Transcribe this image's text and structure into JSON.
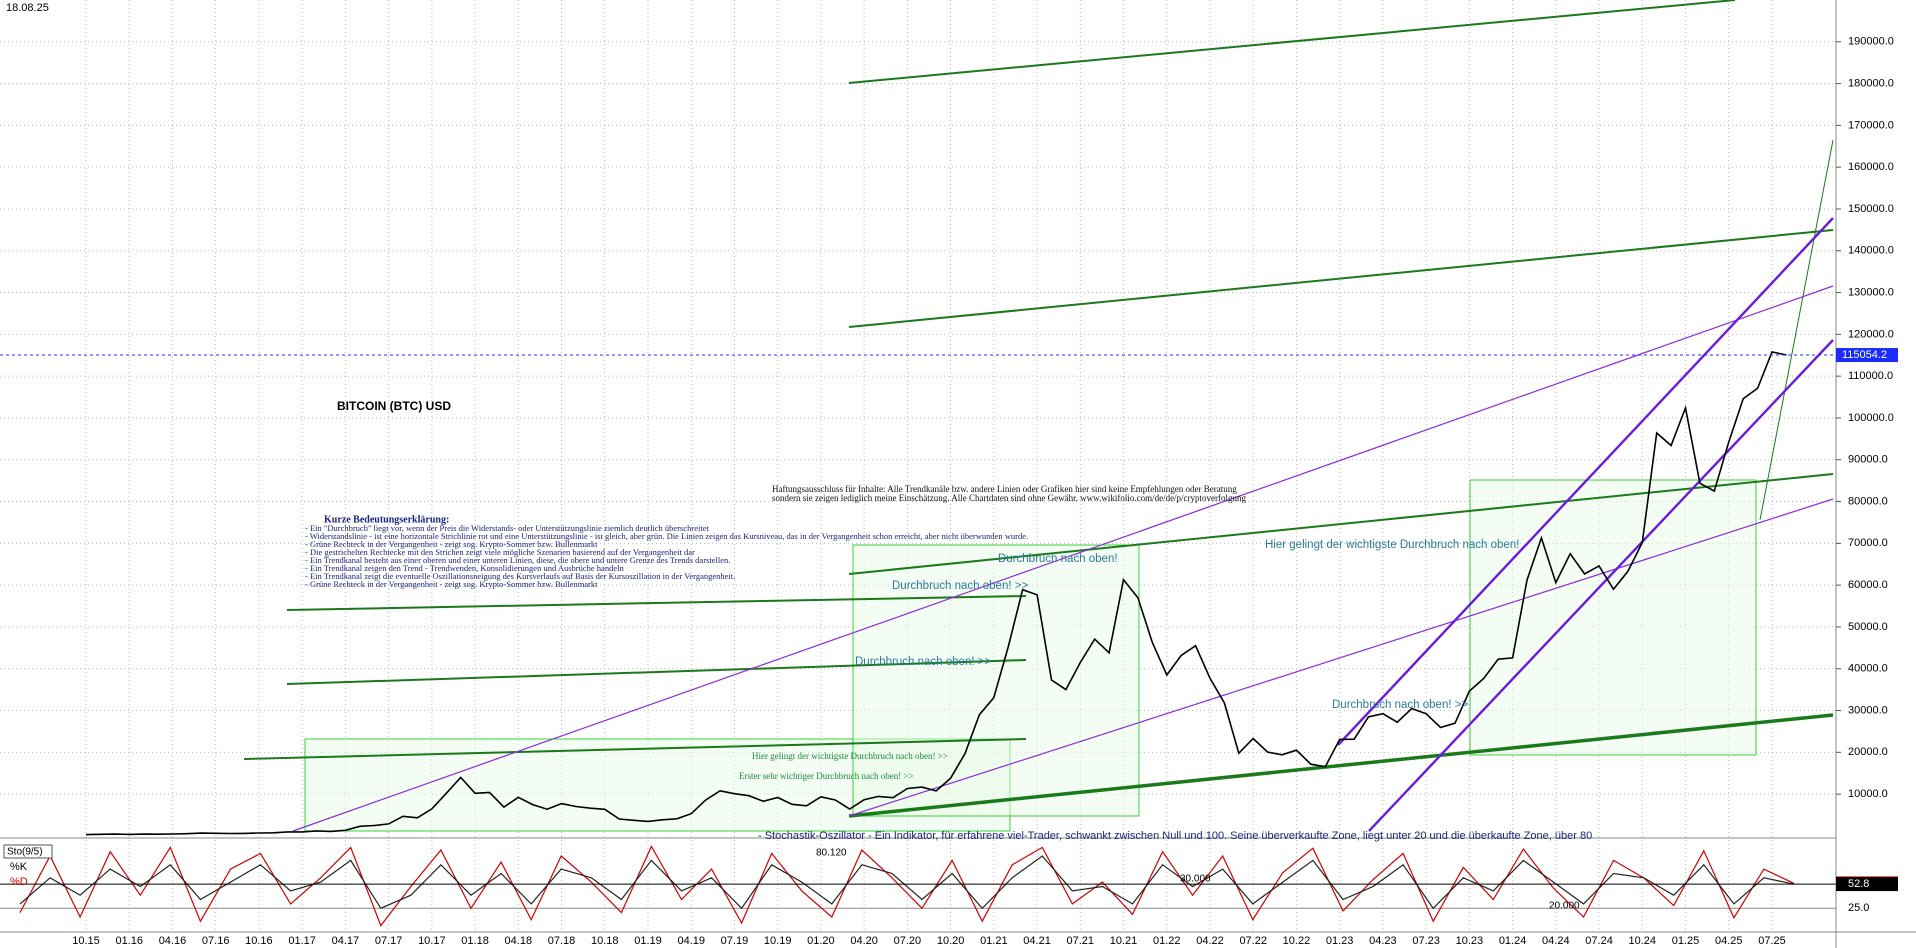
{
  "chart_data": [
    {
      "type": "line",
      "title": "BITCOIN (BTC) USD",
      "date": "18.08.25",
      "last_price": 115054.2,
      "color": "#000000",
      "grid": true,
      "categories": [
        "10.15",
        null,
        null,
        "01.16",
        null,
        null,
        "04.16",
        null,
        null,
        "07.16",
        null,
        null,
        "10.16",
        null,
        null,
        "01.17",
        null,
        null,
        "04.17",
        null,
        null,
        "07.17",
        null,
        null,
        "10.17",
        null,
        null,
        "01.18",
        null,
        null,
        "04.18",
        null,
        null,
        "07.18",
        null,
        null,
        "10.18",
        null,
        null,
        "01.19",
        null,
        null,
        "04.19",
        null,
        null,
        "07.19",
        null,
        null,
        "10.19",
        null,
        null,
        "01.20",
        null,
        null,
        "04.20",
        null,
        null,
        "07.20",
        null,
        null,
        "10.20",
        null,
        null,
        "01.21",
        null,
        null,
        "04.21",
        null,
        null,
        "07.21",
        null,
        null,
        "10.21",
        null,
        null,
        "01.22",
        null,
        null,
        "04.22",
        null,
        null,
        "07.22",
        null,
        null,
        "10.22",
        null,
        null,
        "01.23",
        null,
        null,
        "04.23",
        null,
        null,
        "07.23",
        null,
        null,
        "10.23",
        null,
        null,
        "01.24",
        null,
        null,
        "04.24",
        null,
        null,
        "07.24",
        null,
        null,
        "10.24",
        null,
        null,
        "01.25",
        null,
        null,
        "04.25",
        null,
        null,
        "07.25",
        null
      ],
      "values": [
        310,
        377,
        430,
        369,
        437,
        416,
        448,
        531,
        673,
        624,
        575,
        609,
        701,
        742,
        963,
        970,
        1190,
        1080,
        1350,
        2300,
        2480,
        2880,
        4700,
        4340,
        6470,
        10200,
        14000,
        10200,
        10400,
        6900,
        9240,
        7500,
        6400,
        7730,
        7030,
        6630,
        6370,
        4040,
        3740,
        3460,
        3850,
        4100,
        5320,
        8570,
        10800,
        10100,
        9630,
        8290,
        9200,
        7570,
        7200,
        9350,
        8600,
        6440,
        8660,
        9460,
        9140,
        11350,
        11680,
        10780,
        13800,
        19700,
        29000,
        33100,
        45200,
        58900,
        57700,
        37300,
        35000,
        41500,
        47100,
        43800,
        61300,
        57000,
        46300,
        38500,
        43200,
        45500,
        37700,
        31800,
        19800,
        23300,
        20050,
        19400,
        20500,
        17150,
        16550,
        23100,
        23150,
        28500,
        29250,
        27200,
        30480,
        29230,
        25940,
        26970,
        34650,
        37720,
        42280,
        42580,
        61200,
        71300,
        60600,
        67500,
        62700,
        64600,
        59000,
        63300,
        70200,
        96400,
        93400,
        102400,
        84400,
        82500,
        94200,
        104600,
        107100,
        115800,
        115054
      ],
      "ylim": [
        -500,
        200000
      ],
      "yticks": [
        {
          "value": 10000,
          "label": "10000.0"
        },
        {
          "value": 20000,
          "label": "20000.0"
        },
        {
          "value": 30000,
          "label": "30000.0"
        },
        {
          "value": 40000,
          "label": "40000.0"
        },
        {
          "value": 50000,
          "label": "50000.0"
        },
        {
          "value": 60000,
          "label": "60000.0"
        },
        {
          "value": 70000,
          "label": "70000.0"
        },
        {
          "value": 80000,
          "label": "80000.0"
        },
        {
          "value": 90000,
          "label": "90000.0"
        },
        {
          "value": 100000,
          "label": "100000.0"
        },
        {
          "value": 110000,
          "label": "110000.0"
        },
        {
          "value": 120000,
          "label": "120000.0"
        },
        {
          "value": 130000,
          "label": "130000.0"
        },
        {
          "value": 140000,
          "label": "140000.0"
        },
        {
          "value": 150000,
          "label": "150000.0"
        },
        {
          "value": 160000,
          "label": "160000.0"
        },
        {
          "value": 170000,
          "label": "170000.0"
        },
        {
          "value": 180000,
          "label": "180000.0"
        },
        {
          "value": 190000,
          "label": "190000.0"
        }
      ],
      "annotations": [
        "Haftungsausschluss für Inhalte: Alle Trendkanäle bzw. andere Linien oder Grafiken hier sind keine Empfehlungen oder Beratung",
        "sondern sie zeigen lediglich meine Einschätzung. Alle Chartdaten sind ohne Gewähr. www.wikifolio.com/de/de/p/cryptoverfolgung",
        "Kurze Bedeutungserklärung:",
        "- Ein \"Durchbruch\" liegt vor, wenn der Preis die Widerstands- oder Unterstützungslinie ziemlich deutlich überschreitet",
        "- Widerstandslinie - ist eine horizontale Strichlinie rot und eine Unterstützungslinie - ist gleich, aber grün. Die Linien zeigen das Kursniveau, das in der Vergangenheit schon erreicht, aber nicht überwunden wurde.",
        "- Grüne Rechteck in der Vergangenheit - zeigt sog. Krypto-Sommer bzw. Bullenmarkt",
        "- Die gestrichelten Rechtecke mit den Strichen zeigt viele mögliche Szenarien basierend auf der Vergangenheit dar",
        "- Ein Trendkanal besteht aus einer oberen und einer unteren Linien, diese, die obere und untere Grenze des Trends darstellen.",
        "- Ein Trendkanal zeigen den Trend - Trendwenden, Konsolidierungen und Ausbrüche handeln",
        "- Ein Trendkanal zeigt die eventuelle Oszillationsneigung des Kursverlaufs auf Basis der Kursoszillation in der Vergangenheit.",
        "- Grüne Rechteck in der Vergangenheit - zeigt sog. Krypto-Sommer bzw. Bullenmarkt",
        "Hier gelingt der wichtigste Durchbruch nach oben!",
        "Durchbruch nach oben!",
        "Durchbruch nach oben! >>",
        "Hier gelingt der wichtigste Durchbruch nach oben! >>",
        "Erster sehr wichtiger Durchbruch nach oben! >>"
      ]
    },
    {
      "type": "line",
      "indicator": "Sto(9/5)",
      "description": "- Stochastik-Oszillator - Ein Indikator, für erfahrene viel-Trader, schwankt zwischen Null und 100. Seine überverkaufte Zone, liegt unter 20 und die überkaufte Zone, über 80",
      "annotations": [
        "80.120",
        "30.000",
        "20.000"
      ],
      "ylim": [
        0,
        100
      ],
      "yticks": [
        {
          "value": 25,
          "label": "25.0"
        }
      ],
      "series": [
        {
          "name": "%K",
          "color": "#d00000",
          "values": [
            20,
            85,
            15,
            90,
            40,
            95,
            10,
            70,
            88,
            30,
            60,
            95,
            5,
            50,
            92,
            25,
            78,
            12,
            85,
            55,
            20,
            96,
            35,
            70,
            8,
            88,
            45,
            15,
            92,
            60,
            25,
            80,
            10,
            75,
            95,
            30,
            55,
            18,
            90,
            40,
            85,
            12,
            66,
            94,
            22,
            58,
            88,
            10,
            72,
            35,
            93,
            48,
            15,
            80,
            60,
            28,
            91,
            14,
            70,
            53.6
          ]
        },
        {
          "name": "%D",
          "color": "#222222",
          "values": [
            30,
            60,
            40,
            70,
            50,
            75,
            35,
            55,
            75,
            45,
            55,
            80,
            25,
            40,
            75,
            40,
            65,
            30,
            70,
            60,
            35,
            80,
            45,
            60,
            25,
            75,
            55,
            30,
            75,
            65,
            35,
            65,
            25,
            60,
            85,
            45,
            50,
            30,
            75,
            50,
            70,
            30,
            55,
            80,
            35,
            50,
            75,
            25,
            60,
            45,
            80,
            55,
            30,
            65,
            60,
            40,
            75,
            30,
            60,
            52.8
          ]
        }
      ]
    }
  ]
}
